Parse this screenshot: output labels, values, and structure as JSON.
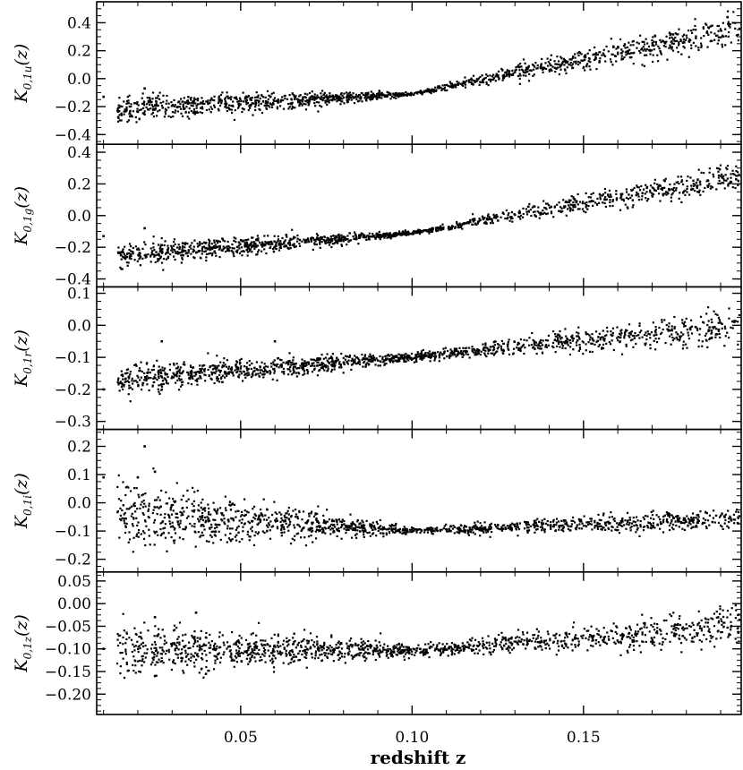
{
  "figure": {
    "xlabel": "redshift z",
    "x_ticks": [
      0.05,
      0.1,
      0.15
    ],
    "x_tick_labels": [
      "0.05",
      "0.10",
      "0.15"
    ],
    "xlim": [
      0.008,
      0.196
    ]
  },
  "chart_data": [
    {
      "type": "scatter",
      "ylabel_main": "K",
      "ylabel_sub": "0,1u",
      "ylabel_tail": "(z)",
      "ylim": [
        -0.47,
        0.55
      ],
      "y_ticks": [
        -0.4,
        -0.2,
        0.0,
        0.2,
        0.4
      ],
      "y_tick_labels": [
        "−0.4",
        "−0.2",
        "0.0",
        "0.2",
        "0.4"
      ],
      "trend": {
        "start": [
          0.015,
          -0.22
        ],
        "pivot": [
          0.1,
          -0.11
        ],
        "end": [
          0.196,
          0.36
        ],
        "spread_low": 0.09,
        "spread_high": 0.11
      },
      "outliers": [
        [
          0.01,
          -0.13
        ],
        [
          0.022,
          -0.07
        ],
        [
          0.192,
          0.44
        ]
      ]
    },
    {
      "type": "scatter",
      "ylabel_main": "K",
      "ylabel_sub": "0,1g",
      "ylabel_tail": "(z)",
      "ylim": [
        -0.45,
        0.45
      ],
      "y_ticks": [
        -0.4,
        -0.2,
        0.0,
        0.2,
        0.4
      ],
      "y_tick_labels": [
        "−0.4",
        "−0.2",
        "0.0",
        "0.2",
        "0.4"
      ],
      "trend": {
        "start": [
          0.015,
          -0.25
        ],
        "pivot": [
          0.1,
          -0.11
        ],
        "end": [
          0.196,
          0.25
        ],
        "spread_low": 0.07,
        "spread_high": 0.08
      },
      "outliers": [
        [
          0.01,
          -0.13
        ],
        [
          0.022,
          -0.08
        ]
      ]
    },
    {
      "type": "scatter",
      "ylabel_main": "K",
      "ylabel_sub": "0,1r",
      "ylabel_tail": "(z)",
      "ylim": [
        -0.325,
        0.12
      ],
      "y_ticks": [
        -0.3,
        -0.2,
        -0.1,
        0.0,
        0.1
      ],
      "y_tick_labels": [
        "−0.3",
        "−0.2",
        "−0.1",
        "0.0",
        "0.1"
      ],
      "trend": {
        "start": [
          0.015,
          -0.17
        ],
        "pivot": [
          0.1,
          -0.1
        ],
        "end": [
          0.196,
          0.0
        ],
        "spread_low": 0.035,
        "spread_high": 0.04
      },
      "outliers": [
        [
          0.01,
          -0.2
        ],
        [
          0.027,
          -0.05
        ],
        [
          0.06,
          -0.05
        ]
      ]
    },
    {
      "type": "scatter",
      "ylabel_main": "K",
      "ylabel_sub": "0,1i",
      "ylabel_tail": "(z)",
      "ylim": [
        -0.245,
        0.26
      ],
      "y_ticks": [
        -0.2,
        -0.1,
        0.0,
        0.1,
        0.2
      ],
      "y_tick_labels": [
        "−0.2",
        "−0.1",
        "0.0",
        "0.1",
        "0.2"
      ],
      "trend": {
        "start": [
          0.015,
          -0.04
        ],
        "pivot": [
          0.1,
          -0.1
        ],
        "end": [
          0.196,
          -0.055
        ],
        "spread_low": 0.1,
        "spread_high": 0.025
      },
      "outliers": [
        [
          0.01,
          0.09
        ],
        [
          0.022,
          0.2
        ],
        [
          0.025,
          0.11
        ],
        [
          0.02,
          0.09
        ]
      ]
    },
    {
      "type": "scatter",
      "ylabel_main": "K",
      "ylabel_sub": "0,1z",
      "ylabel_tail": "(z)",
      "ylim": [
        -0.245,
        0.07
      ],
      "y_ticks": [
        -0.2,
        -0.15,
        -0.1,
        -0.05,
        0.0,
        0.05
      ],
      "y_tick_labels": [
        "−0.20",
        "−0.15",
        "−0.10",
        "−0.05",
        "0.00",
        "0.05"
      ],
      "trend": {
        "start": [
          0.015,
          -0.1
        ],
        "pivot": [
          0.1,
          -0.105
        ],
        "end": [
          0.196,
          -0.05
        ],
        "spread_low": 0.045,
        "spread_high": 0.03
      },
      "outliers": [
        [
          0.01,
          -0.1
        ],
        [
          0.025,
          -0.03
        ],
        [
          0.037,
          -0.02
        ],
        [
          0.025,
          -0.16
        ]
      ]
    }
  ]
}
